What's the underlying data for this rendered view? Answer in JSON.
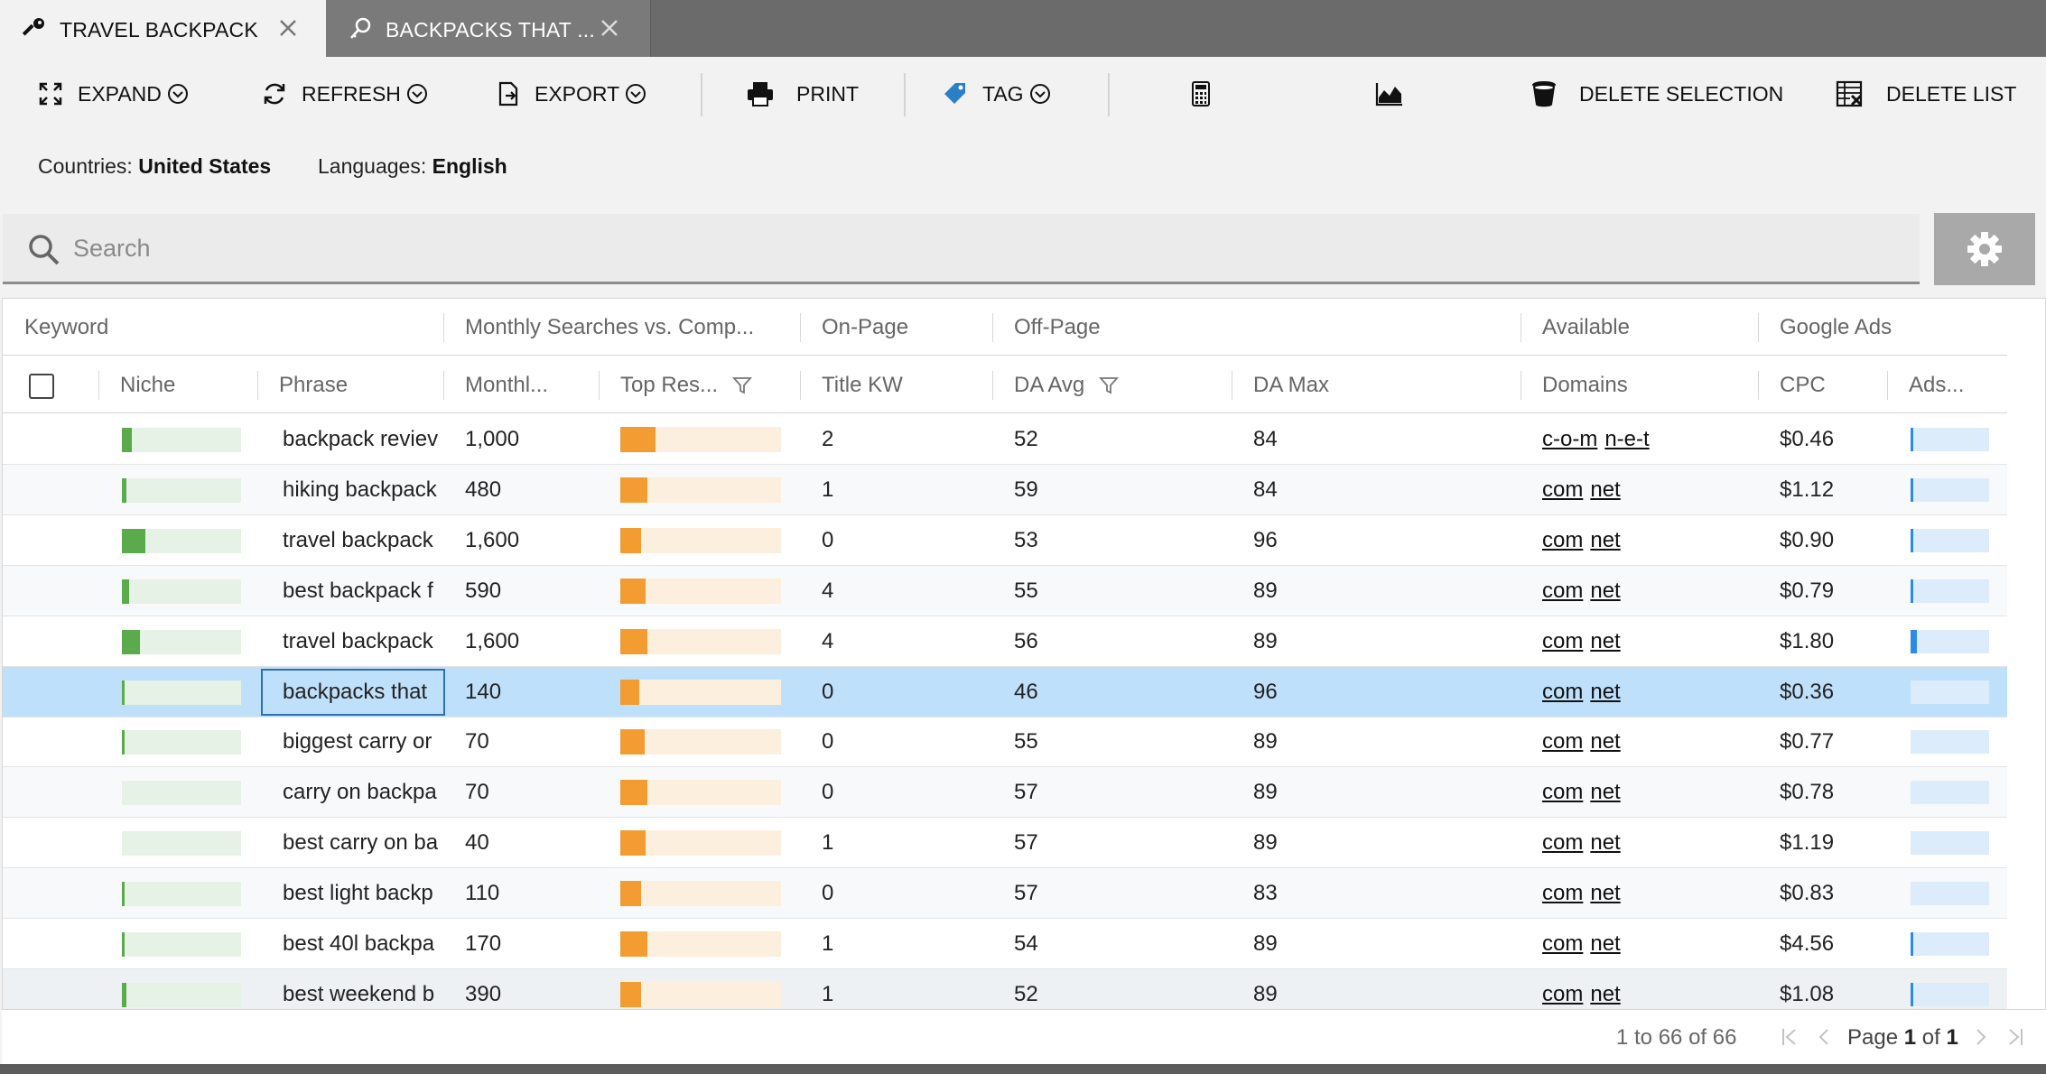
{
  "tabs": [
    {
      "label": "TRAVEL BACKPACK",
      "icon": "key-icon",
      "active": true
    },
    {
      "label": "BACKPACKS THAT ...",
      "icon": "key-search-icon",
      "active": false
    }
  ],
  "toolbar": {
    "expand": "EXPAND",
    "refresh": "REFRESH",
    "export": "EXPORT",
    "print": "PRINT",
    "tag": "TAG",
    "delete_selection": "DELETE SELECTION",
    "delete_list": "DELETE LIST"
  },
  "filters": {
    "countries_label": "Countries:",
    "countries_value": "United States",
    "languages_label": "Languages:",
    "languages_value": "English"
  },
  "search": {
    "placeholder": "Search"
  },
  "grid": {
    "groups": [
      "Keyword",
      "Monthly Searches vs. Comp...",
      "On-Page",
      "Off-Page",
      "Available",
      "Google Ads"
    ],
    "columns": [
      "Niche",
      "Phrase",
      "Monthl...",
      "Top Res...",
      "Title KW",
      "DA Avg",
      "DA Max",
      "Domains",
      "CPC",
      "Ads..."
    ],
    "rows": [
      {
        "niche": 0.08,
        "phrase": "backpack reviev",
        "monthly": "1,000",
        "top": 0.22,
        "title_kw": "2",
        "da_avg": "52",
        "da_max": "84",
        "domains": [
          "c-o-m",
          "n-e-t"
        ],
        "cpc": "$0.46",
        "ads": 0.03
      },
      {
        "niche": 0.04,
        "phrase": "hiking backpack",
        "monthly": "480",
        "top": 0.17,
        "title_kw": "1",
        "da_avg": "59",
        "da_max": "84",
        "domains": [
          "com",
          "net"
        ],
        "cpc": "$1.12",
        "ads": 0.03
      },
      {
        "niche": 0.2,
        "phrase": "travel backpack",
        "monthly": "1,600",
        "top": 0.13,
        "title_kw": "0",
        "da_avg": "53",
        "da_max": "96",
        "domains": [
          "com",
          "net"
        ],
        "cpc": "$0.90",
        "ads": 0.04
      },
      {
        "niche": 0.06,
        "phrase": "best backpack f",
        "monthly": "590",
        "top": 0.16,
        "title_kw": "4",
        "da_avg": "55",
        "da_max": "89",
        "domains": [
          "com",
          "net"
        ],
        "cpc": "$0.79",
        "ads": 0.03
      },
      {
        "niche": 0.15,
        "phrase": "travel backpack",
        "monthly": "1,600",
        "top": 0.17,
        "title_kw": "4",
        "da_avg": "56",
        "da_max": "89",
        "domains": [
          "com",
          "net"
        ],
        "cpc": "$1.80",
        "ads": 0.08
      },
      {
        "niche": 0.02,
        "phrase": "backpacks that",
        "monthly": "140",
        "top": 0.12,
        "title_kw": "0",
        "da_avg": "46",
        "da_max": "96",
        "domains": [
          "com",
          "net"
        ],
        "cpc": "$0.36",
        "ads": 0.0
      },
      {
        "niche": 0.02,
        "phrase": "biggest carry or",
        "monthly": "70",
        "top": 0.15,
        "title_kw": "0",
        "da_avg": "55",
        "da_max": "89",
        "domains": [
          "com",
          "net"
        ],
        "cpc": "$0.77",
        "ads": 0.0
      },
      {
        "niche": 0.0,
        "phrase": "carry on backpa",
        "monthly": "70",
        "top": 0.17,
        "title_kw": "0",
        "da_avg": "57",
        "da_max": "89",
        "domains": [
          "com",
          "net"
        ],
        "cpc": "$0.78",
        "ads": 0.0
      },
      {
        "niche": 0.0,
        "phrase": "best carry on ba",
        "monthly": "40",
        "top": 0.16,
        "title_kw": "1",
        "da_avg": "57",
        "da_max": "89",
        "domains": [
          "com",
          "net"
        ],
        "cpc": "$1.19",
        "ads": 0.0
      },
      {
        "niche": 0.02,
        "phrase": "best light backp",
        "monthly": "110",
        "top": 0.13,
        "title_kw": "0",
        "da_avg": "57",
        "da_max": "83",
        "domains": [
          "com",
          "net"
        ],
        "cpc": "$0.83",
        "ads": 0.0
      },
      {
        "niche": 0.02,
        "phrase": "best 40l backpa",
        "monthly": "170",
        "top": 0.17,
        "title_kw": "1",
        "da_avg": "54",
        "da_max": "89",
        "domains": [
          "com",
          "net"
        ],
        "cpc": "$4.56",
        "ads": 0.03
      },
      {
        "niche": 0.04,
        "phrase": "best weekend b",
        "monthly": "390",
        "top": 0.13,
        "title_kw": "1",
        "da_avg": "52",
        "da_max": "89",
        "domains": [
          "com",
          "net"
        ],
        "cpc": "$1.08",
        "ads": 0.03
      }
    ]
  },
  "footer": {
    "count": "1 to 66 of 66",
    "page_label": "Page",
    "page_current": "1",
    "page_of": "of",
    "page_total": "1"
  },
  "colors": {
    "niche": "#5bab4d",
    "top_results": "#f39c31",
    "ads": "#2c8be5",
    "selected_row": "#bfe0fa",
    "tag_icon": "#2a7fc9"
  }
}
